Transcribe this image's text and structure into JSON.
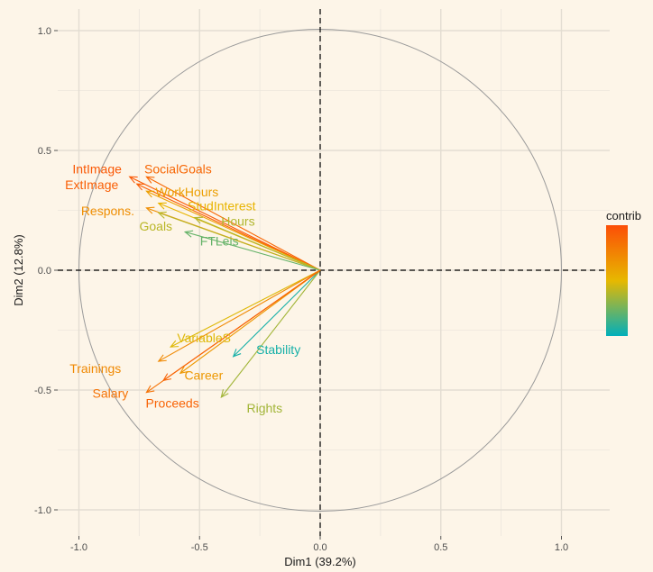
{
  "chart_data": {
    "type": "scatter",
    "subtype": "pca-correlation-circle",
    "title": "",
    "xlabel": "Dim1 (39.2%)",
    "ylabel": "Dim2 (12.8%)",
    "xlim": [
      -1.1,
      1.1
    ],
    "ylim": [
      -1.1,
      1.1
    ],
    "x_ticks": [
      -1.0,
      -0.5,
      0.0,
      0.5,
      1.0
    ],
    "x_tick_labels": [
      "-1.0",
      "-0.5",
      "0.0",
      "0.5",
      "1.0"
    ],
    "y_ticks": [
      -1.0,
      -0.5,
      0.0,
      0.5,
      1.0
    ],
    "y_tick_labels": [
      "-1.0",
      "-0.5",
      "0.0",
      "0.5",
      "1.0"
    ],
    "grid": true,
    "unit_circle": true,
    "background_color": "#fdf5e8",
    "legend": {
      "title": "contrib",
      "placement": "right",
      "gradient": [
        "#00afbb",
        "#e7b800",
        "#fc4e07"
      ]
    },
    "variables": [
      {
        "name": "IntImage",
        "x": -0.79,
        "y": 0.39,
        "contrib": 0.95
      },
      {
        "name": "SocialGoals",
        "x": -0.72,
        "y": 0.39,
        "contrib": 0.88
      },
      {
        "name": "ExtImage",
        "x": -0.76,
        "y": 0.36,
        "contrib": 0.92
      },
      {
        "name": "WorkHours",
        "x": -0.72,
        "y": 0.33,
        "contrib": 0.62
      },
      {
        "name": "Respons.",
        "x": -0.72,
        "y": 0.26,
        "contrib": 0.7
      },
      {
        "name": "StudInterest",
        "x": -0.67,
        "y": 0.28,
        "contrib": 0.52
      },
      {
        "name": "Goals",
        "x": -0.67,
        "y": 0.24,
        "contrib": 0.4
      },
      {
        "name": "Hours",
        "x": -0.52,
        "y": 0.22,
        "contrib": 0.38
      },
      {
        "name": "FTLeis",
        "x": -0.56,
        "y": 0.16,
        "contrib": 0.22
      },
      {
        "name": "VariableS",
        "x": -0.62,
        "y": -0.32,
        "contrib": 0.48
      },
      {
        "name": "Stability",
        "x": -0.36,
        "y": -0.36,
        "contrib": 0.05
      },
      {
        "name": "Trainings",
        "x": -0.67,
        "y": -0.38,
        "contrib": 0.72
      },
      {
        "name": "Career",
        "x": -0.58,
        "y": -0.43,
        "contrib": 0.65
      },
      {
        "name": "Rights",
        "x": -0.41,
        "y": -0.53,
        "contrib": 0.35
      },
      {
        "name": "Salary",
        "x": -0.72,
        "y": -0.51,
        "contrib": 0.83
      },
      {
        "name": "Proceeds",
        "x": -0.65,
        "y": -0.46,
        "contrib": 0.9
      }
    ]
  }
}
